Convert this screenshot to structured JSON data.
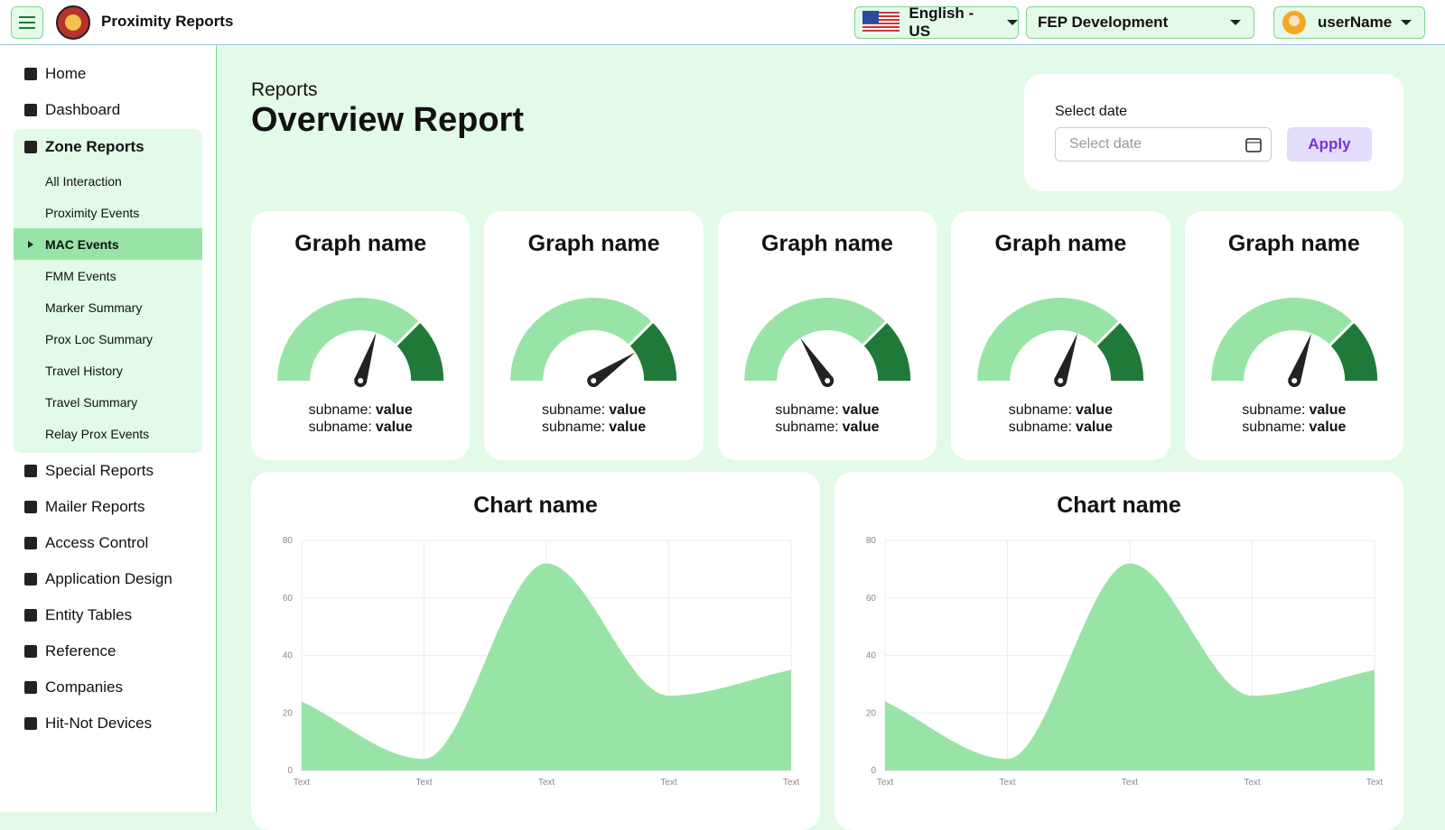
{
  "header": {
    "app_title": "Proximity Reports",
    "language": "English - US",
    "environment": "FEP Development",
    "user": "userName"
  },
  "sidebar": {
    "items_top": [
      "Home",
      "Dashboard"
    ],
    "group": "Zone Reports",
    "group_items": [
      "All Interaction",
      "Proximity Events",
      "MAC Events",
      "FMM Events",
      "Marker Summary",
      "Prox Loc Summary",
      "Travel History",
      "Travel Summary",
      "Relay Prox Events"
    ],
    "active": 2,
    "items_bottom": [
      "Special Reports",
      "Mailer Reports",
      "Access Control",
      "Application Design",
      "Entity Tables",
      "Reference",
      "Companies",
      "Hit-Not Devices"
    ]
  },
  "page": {
    "breadcrumb": "Reports",
    "title": "Overview Report"
  },
  "date_filter": {
    "label": "Select date",
    "placeholder": "Select date",
    "button": "Apply"
  },
  "chart_data": [
    {
      "type": "gauge",
      "title": "Graph name",
      "lim": [
        0,
        100
      ],
      "value": 60,
      "bands": [
        {
          "to": 75,
          "color": "#98e4a6"
        },
        {
          "to": 100,
          "color": "#1f7a3a"
        }
      ],
      "lines": [
        {
          "name": "subname:",
          "value": "value"
        },
        {
          "name": "subname:",
          "value": "value"
        }
      ]
    },
    {
      "type": "gauge",
      "title": "Graph name",
      "lim": [
        0,
        100
      ],
      "value": 81,
      "bands": [
        {
          "to": 75,
          "color": "#98e4a6"
        },
        {
          "to": 100,
          "color": "#1f7a3a"
        }
      ],
      "lines": [
        {
          "name": "subname:",
          "value": "value"
        },
        {
          "name": "subname:",
          "value": "value"
        }
      ]
    },
    {
      "type": "gauge",
      "title": "Graph name",
      "lim": [
        0,
        100
      ],
      "value": 32,
      "bands": [
        {
          "to": 75,
          "color": "#98e4a6"
        },
        {
          "to": 100,
          "color": "#1f7a3a"
        }
      ],
      "lines": [
        {
          "name": "subname:",
          "value": "value"
        },
        {
          "name": "subname:",
          "value": "value"
        }
      ]
    },
    {
      "type": "gauge",
      "title": "Graph name",
      "lim": [
        0,
        100
      ],
      "value": 61,
      "bands": [
        {
          "to": 75,
          "color": "#98e4a6"
        },
        {
          "to": 100,
          "color": "#1f7a3a"
        }
      ],
      "lines": [
        {
          "name": "subname:",
          "value": "value"
        },
        {
          "name": "subname:",
          "value": "value"
        }
      ]
    },
    {
      "type": "gauge",
      "title": "Graph name",
      "lim": [
        0,
        100
      ],
      "value": 61,
      "bands": [
        {
          "to": 75,
          "color": "#98e4a6"
        },
        {
          "to": 100,
          "color": "#1f7a3a"
        }
      ],
      "lines": [
        {
          "name": "subname:",
          "value": "value"
        },
        {
          "name": "subname:",
          "value": "value"
        }
      ]
    },
    {
      "type": "area",
      "title": "Chart name",
      "categories": [
        "Text",
        "Text",
        "Text",
        "Text",
        "Text"
      ],
      "values": [
        24,
        4,
        72,
        26,
        35
      ],
      "color": "#98e4a6",
      "ylim": [
        0,
        80
      ],
      "yticks": [
        0,
        20,
        40,
        60,
        80
      ],
      "grid": true
    },
    {
      "type": "area",
      "title": "Chart name",
      "categories": [
        "Text",
        "Text",
        "Text",
        "Text",
        "Text"
      ],
      "values": [
        24,
        4,
        72,
        26,
        35
      ],
      "color": "#98e4a6",
      "ylim": [
        0,
        80
      ],
      "yticks": [
        0,
        20,
        40,
        60,
        80
      ],
      "grid": true
    }
  ]
}
